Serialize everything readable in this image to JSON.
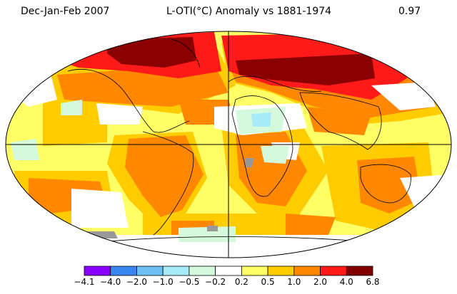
{
  "header": {
    "period": "Dec-Jan-Feb 2007",
    "title": "L-OTI(°C) Anomaly vs 1881-1974",
    "global_mean": "0.97"
  },
  "legend": {
    "colors": [
      "#8800ff",
      "#3a86f0",
      "#6cc0f4",
      "#a6ecf8",
      "#d4f9dc",
      "#ffffff",
      "#ffff66",
      "#ffcc00",
      "#ff8800",
      "#ff1a1a",
      "#800000"
    ],
    "ticks": [
      "−4.1",
      "−4.0",
      "−2.0",
      "−1.0",
      "−0.5",
      "−0.2",
      "0.2",
      "0.5",
      "1.0",
      "2.0",
      "4.0",
      "6.8"
    ],
    "missing_color": "#999999"
  }
}
